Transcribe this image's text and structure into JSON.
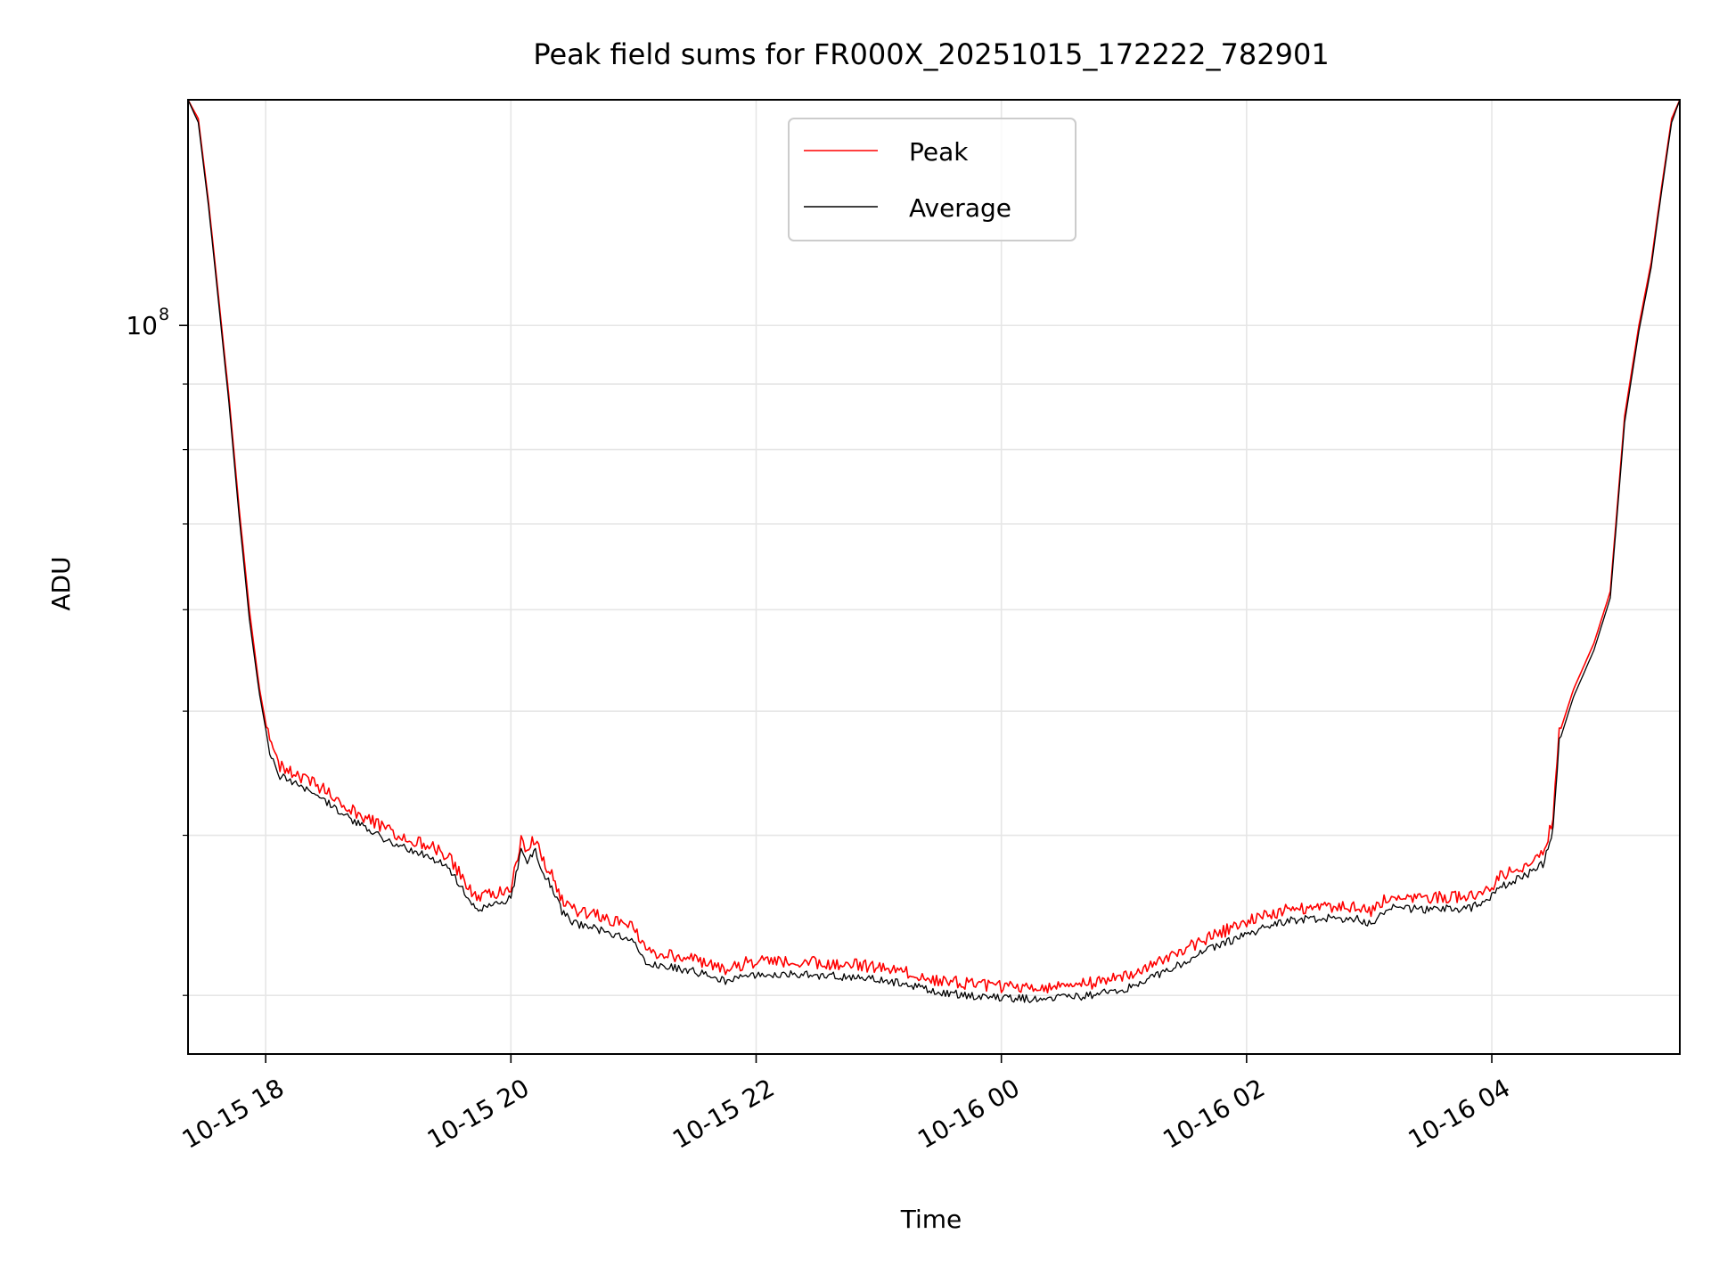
{
  "chart_data": {
    "type": "line",
    "title": "Peak field sums for FR000X_20251015_172222_782901",
    "xlabel": "Time",
    "ylabel": "ADU",
    "yscale": "log",
    "xlim": [
      "2025-10-15T17:22",
      "2025-10-16T05:32"
    ],
    "ylim": [
      27000000.0,
      150000000.0
    ],
    "x_ticks": [
      {
        "value": "2025-10-15T18:00",
        "label": "10-15 18"
      },
      {
        "value": "2025-10-15T20:00",
        "label": "10-15 20"
      },
      {
        "value": "2025-10-15T22:00",
        "label": "10-15 22"
      },
      {
        "value": "2025-10-16T00:00",
        "label": "10-16 00"
      },
      {
        "value": "2025-10-16T02:00",
        "label": "10-16 02"
      },
      {
        "value": "2025-10-16T04:00",
        "label": "10-16 04"
      }
    ],
    "y_major_ticks": [
      {
        "value": 100000000,
        "label_base": "10",
        "label_exp": "8"
      }
    ],
    "y_minor_ticks": [
      30000000,
      40000000,
      50000000,
      60000000,
      70000000,
      80000000,
      90000000
    ],
    "grid": true,
    "legend": {
      "placement": "top-center",
      "entries": [
        "Peak",
        "Average"
      ]
    },
    "series": [
      {
        "name": "Peak",
        "color": "#ff0000",
        "x": [
          "2025-10-15T17:22",
          "2025-10-15T17:27",
          "2025-10-15T17:32",
          "2025-10-15T17:37",
          "2025-10-15T17:42",
          "2025-10-15T17:47",
          "2025-10-15T17:52",
          "2025-10-15T17:57",
          "2025-10-15T18:02",
          "2025-10-15T18:07",
          "2025-10-15T18:12",
          "2025-10-15T18:20",
          "2025-10-15T18:30",
          "2025-10-15T18:40",
          "2025-10-15T18:55",
          "2025-10-15T19:05",
          "2025-10-15T19:20",
          "2025-10-15T19:30",
          "2025-10-15T19:40",
          "2025-10-15T19:45",
          "2025-10-15T19:52",
          "2025-10-15T20:00",
          "2025-10-15T20:05",
          "2025-10-15T20:08",
          "2025-10-15T20:12",
          "2025-10-15T20:16",
          "2025-10-15T20:20",
          "2025-10-15T20:25",
          "2025-10-15T20:30",
          "2025-10-15T20:45",
          "2025-10-15T21:00",
          "2025-10-15T21:06",
          "2025-10-15T21:15",
          "2025-10-15T21:30",
          "2025-10-15T21:45",
          "2025-10-15T21:55",
          "2025-10-15T22:10",
          "2025-10-15T22:30",
          "2025-10-15T22:50",
          "2025-10-15T23:10",
          "2025-10-15T23:30",
          "2025-10-15T23:50",
          "2025-10-16T00:00",
          "2025-10-16T00:20",
          "2025-10-16T00:40",
          "2025-10-16T01:00",
          "2025-10-16T01:20",
          "2025-10-16T01:40",
          "2025-10-16T02:00",
          "2025-10-16T02:20",
          "2025-10-16T02:40",
          "2025-10-16T02:55",
          "2025-10-16T03:00",
          "2025-10-16T03:10",
          "2025-10-16T03:30",
          "2025-10-16T03:50",
          "2025-10-16T04:00",
          "2025-10-16T04:05",
          "2025-10-16T04:15",
          "2025-10-16T04:25",
          "2025-10-16T04:30",
          "2025-10-16T04:33",
          "2025-10-16T04:40",
          "2025-10-16T04:50",
          "2025-10-16T04:58",
          "2025-10-16T05:05",
          "2025-10-16T05:12",
          "2025-10-16T05:18",
          "2025-10-16T05:23",
          "2025-10-16T05:28",
          "2025-10-16T05:32"
        ],
        "y": [
          150000000,
          145000000,
          125000000,
          105000000,
          88000000,
          72000000,
          60000000,
          52000000,
          47000000,
          45000000,
          44500000,
          44000000,
          43000000,
          41800000,
          40500000,
          39800000,
          39000000,
          38200000,
          36000000,
          35500000,
          35800000,
          36200000,
          39500000,
          38800000,
          39500000,
          38000000,
          37000000,
          35500000,
          34800000,
          34300000,
          33800000,
          32200000,
          32100000,
          31800000,
          31200000,
          31600000,
          31700000,
          31600000,
          31500000,
          31200000,
          30600000,
          30400000,
          30300000,
          30200000,
          30400000,
          30800000,
          31800000,
          33000000,
          34000000,
          34800000,
          35000000,
          34900000,
          34600000,
          35600000,
          35500000,
          35600000,
          36300000,
          37000000,
          37600000,
          38500000,
          41000000,
          48000000,
          52000000,
          56500000,
          62000000,
          85000000,
          100000000,
          112000000,
          128000000,
          145000000,
          150000000
        ]
      },
      {
        "name": "Average",
        "color": "#000000",
        "x": [
          "2025-10-15T17:22",
          "2025-10-15T17:27",
          "2025-10-15T17:32",
          "2025-10-15T17:37",
          "2025-10-15T17:42",
          "2025-10-15T17:47",
          "2025-10-15T17:52",
          "2025-10-15T17:57",
          "2025-10-15T18:02",
          "2025-10-15T18:07",
          "2025-10-15T18:12",
          "2025-10-15T18:20",
          "2025-10-15T18:30",
          "2025-10-15T18:40",
          "2025-10-15T18:55",
          "2025-10-15T19:05",
          "2025-10-15T19:20",
          "2025-10-15T19:30",
          "2025-10-15T19:40",
          "2025-10-15T19:45",
          "2025-10-15T19:52",
          "2025-10-15T20:00",
          "2025-10-15T20:05",
          "2025-10-15T20:08",
          "2025-10-15T20:12",
          "2025-10-15T20:16",
          "2025-10-15T20:20",
          "2025-10-15T20:25",
          "2025-10-15T20:30",
          "2025-10-15T20:45",
          "2025-10-15T21:00",
          "2025-10-15T21:06",
          "2025-10-15T21:15",
          "2025-10-15T21:30",
          "2025-10-15T21:45",
          "2025-10-15T21:55",
          "2025-10-15T22:10",
          "2025-10-15T22:30",
          "2025-10-15T22:50",
          "2025-10-15T23:10",
          "2025-10-15T23:30",
          "2025-10-15T23:50",
          "2025-10-16T00:00",
          "2025-10-16T00:20",
          "2025-10-16T00:40",
          "2025-10-16T01:00",
          "2025-10-16T01:20",
          "2025-10-16T01:40",
          "2025-10-16T02:00",
          "2025-10-16T02:20",
          "2025-10-16T02:40",
          "2025-10-16T02:55",
          "2025-10-16T03:00",
          "2025-10-16T03:10",
          "2025-10-16T03:30",
          "2025-10-16T03:50",
          "2025-10-16T04:00",
          "2025-10-16T04:05",
          "2025-10-16T04:15",
          "2025-10-16T04:25",
          "2025-10-16T04:30",
          "2025-10-16T04:33",
          "2025-10-16T04:40",
          "2025-10-16T04:50",
          "2025-10-16T04:58",
          "2025-10-16T05:05",
          "2025-10-16T05:12",
          "2025-10-16T05:18",
          "2025-10-16T05:23",
          "2025-10-16T05:28",
          "2025-10-16T05:32"
        ],
        "y": [
          150000000,
          144000000,
          124000000,
          104000000,
          87000000,
          71000000,
          59000000,
          51500000,
          46500000,
          44500000,
          44000000,
          43500000,
          42500000,
          41300000,
          40000000,
          39300000,
          38500000,
          37700000,
          35500000,
          35000000,
          35300000,
          35700000,
          38800000,
          38200000,
          38900000,
          37400000,
          36400000,
          34900000,
          34200000,
          33700000,
          33200000,
          31700000,
          31600000,
          31300000,
          30800000,
          31100000,
          31200000,
          31100000,
          31000000,
          30700000,
          30150000,
          29950000,
          29850000,
          29800000,
          29950000,
          30300000,
          31300000,
          32500000,
          33500000,
          34300000,
          34500000,
          34400000,
          34100000,
          35100000,
          35000000,
          35100000,
          35800000,
          36500000,
          37100000,
          38000000,
          40500000,
          47300000,
          51300000,
          55800000,
          61300000,
          84000000,
          99000000,
          111000000,
          127000000,
          144000000,
          150000000
        ]
      }
    ]
  }
}
